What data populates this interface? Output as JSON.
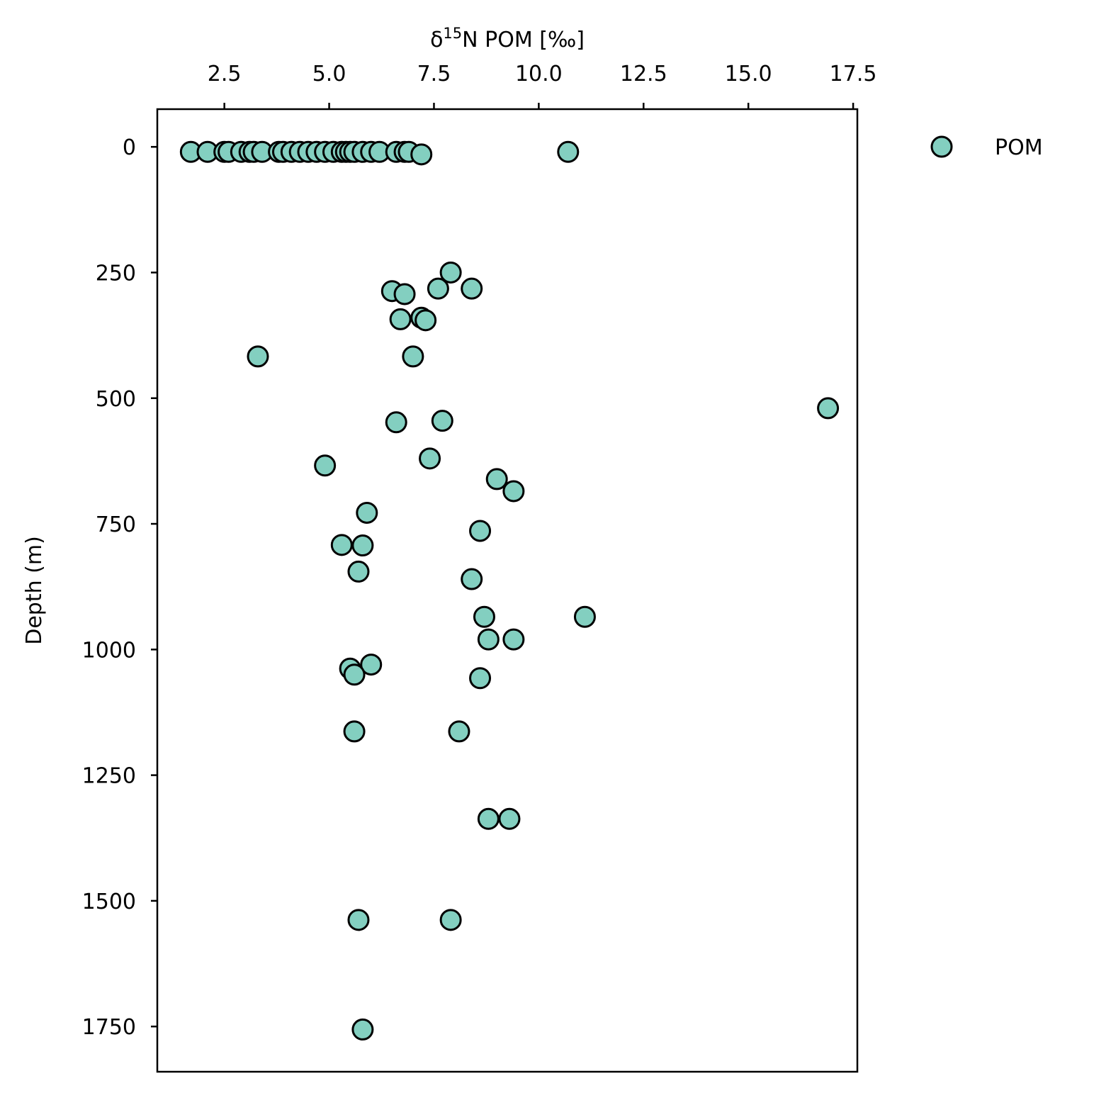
{
  "chart_data": {
    "type": "scatter",
    "xlabel_main": "δ",
    "xlabel_sup": "15",
    "xlabel_rest": "N POM [‰]",
    "ylabel": "Depth (m)",
    "x_axis_position": "top",
    "y_inverted": true,
    "xlim": [
      0.9,
      17.6
    ],
    "ylim": [
      1840,
      -75
    ],
    "xticks": [
      2.5,
      5.0,
      7.5,
      10.0,
      12.5,
      15.0,
      17.5
    ],
    "xtick_labels": [
      "2.5",
      "5.0",
      "7.5",
      "10.0",
      "12.5",
      "15.0",
      "17.5"
    ],
    "yticks": [
      0,
      250,
      500,
      750,
      1000,
      1250,
      1500,
      1750
    ],
    "ytick_labels": [
      "0",
      "250",
      "500",
      "750",
      "1000",
      "1250",
      "1500",
      "1750"
    ],
    "grid": false,
    "legend_position": "outside-top-right",
    "series": [
      {
        "name": "POM",
        "color": "#83cfc0",
        "edgecolor": "#000000",
        "x": [
          1.7,
          2.1,
          2.5,
          2.6,
          2.9,
          3.1,
          3.2,
          3.4,
          3.8,
          3.9,
          4.1,
          4.3,
          4.5,
          4.7,
          4.9,
          5.1,
          5.3,
          5.4,
          5.5,
          5.6,
          5.8,
          6.0,
          6.2,
          6.6,
          6.8,
          6.9,
          7.2,
          10.7,
          7.9,
          7.6,
          8.4,
          6.5,
          6.8,
          7.2,
          6.7,
          7.3,
          3.3,
          7.0,
          16.9,
          7.7,
          6.6,
          7.4,
          4.9,
          9.0,
          9.4,
          5.9,
          8.6,
          5.3,
          5.8,
          5.7,
          8.4,
          8.7,
          11.1,
          8.8,
          9.4,
          6.0,
          5.5,
          5.6,
          8.6,
          5.6,
          8.1,
          8.8,
          9.3,
          5.7,
          7.9,
          5.8
        ],
        "y": [
          10,
          10,
          10,
          10,
          10,
          10,
          10,
          10,
          10,
          10,
          10,
          10,
          10,
          10,
          10,
          10,
          10,
          10,
          10,
          10,
          10,
          10,
          10,
          10,
          10,
          10,
          15,
          10,
          250,
          282,
          282,
          287,
          293,
          340,
          343,
          345,
          417,
          417,
          520,
          545,
          548,
          620,
          634,
          661,
          685,
          728,
          764,
          792,
          793,
          845,
          860,
          935,
          935,
          980,
          980,
          1030,
          1038,
          1050,
          1057,
          1163,
          1163,
          1337,
          1337,
          1538,
          1538,
          1756
        ]
      }
    ]
  }
}
